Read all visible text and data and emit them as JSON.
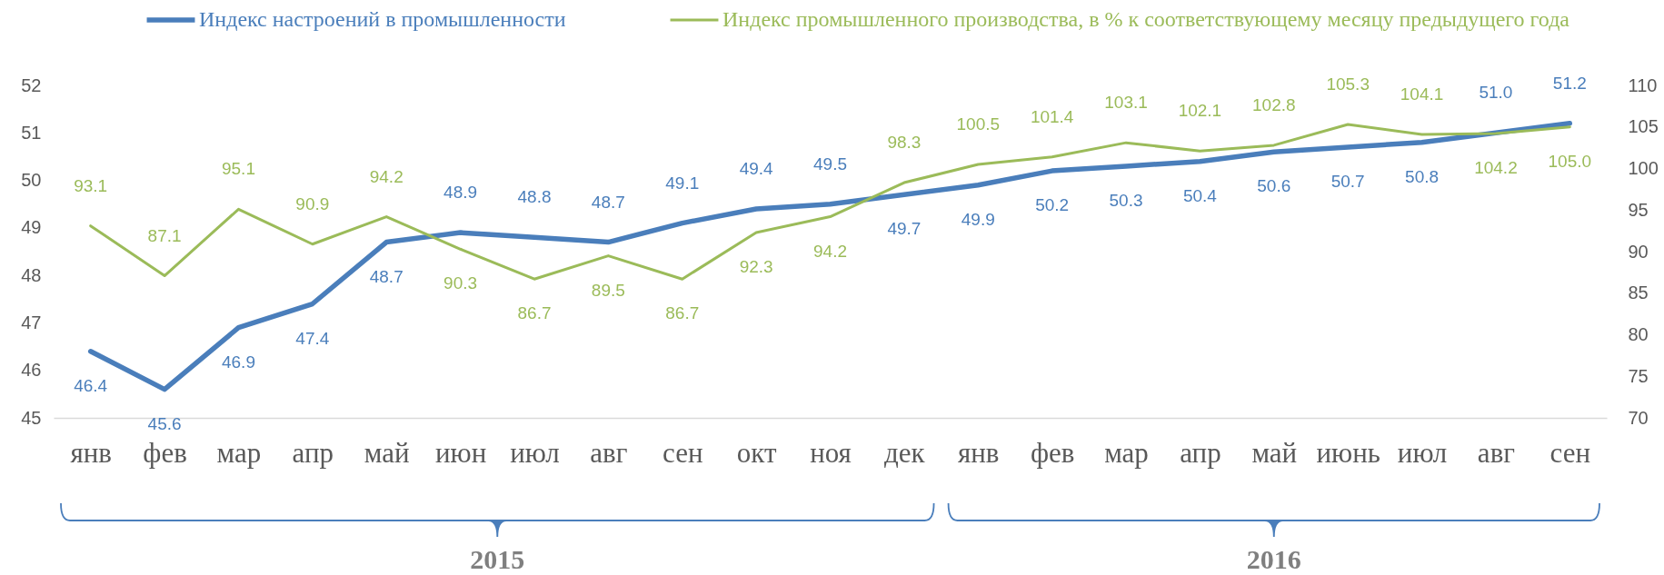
{
  "chart_data": {
    "type": "line",
    "categories": [
      "янв",
      "фев",
      "мар",
      "апр",
      "май",
      "июн",
      "июл",
      "авг",
      "сен",
      "окт",
      "ноя",
      "дек",
      "янв",
      "фев",
      "мар",
      "апр",
      "май",
      "июнь",
      "июл",
      "авг",
      "сен"
    ],
    "series": [
      {
        "name": "Индекс настроений в промышленности",
        "color": "#4a7ebb",
        "values": [
          46.4,
          45.6,
          46.9,
          47.4,
          48.7,
          48.9,
          48.8,
          48.7,
          49.1,
          49.4,
          49.5,
          49.7,
          49.9,
          50.2,
          50.3,
          50.4,
          50.6,
          50.7,
          50.8,
          51.0,
          51.2
        ],
        "value_labels": [
          "46.4",
          "45.6",
          "46.9",
          "47.4",
          "48.7",
          "48.9",
          "48.8",
          "48.7",
          "49.1",
          "49.4",
          "49.5",
          "49.7",
          "49.9",
          "50.2",
          "50.3",
          "50.4",
          "50.6",
          "50.7",
          "50.8",
          "51.0",
          "51.2"
        ]
      },
      {
        "name": "Индекс промышленного производства, в % к соответствующему месяцу предыдущего года",
        "color": "#9bbb59",
        "axis": "y2",
        "values": [
          93.1,
          87.1,
          95.1,
          90.9,
          94.2,
          90.3,
          86.7,
          89.5,
          86.7,
          92.3,
          94.2,
          98.3,
          100.5,
          101.4,
          103.1,
          102.1,
          102.8,
          105.3,
          104.1,
          104.2,
          105.0
        ],
        "value_labels": [
          "93.1",
          "87.1",
          "95.1",
          "90.9",
          "94.2",
          "90.3",
          "86.7",
          "89.5",
          "86.7",
          "92.3",
          "94.2",
          "98.3",
          "100.5",
          "101.4",
          "103.1",
          "102.1",
          "102.8",
          "105.3",
          "104.1",
          "104.2",
          "105.0"
        ]
      }
    ],
    "ylim": [
      45,
      52
    ],
    "yticks": [
      45,
      46,
      47,
      48,
      49,
      50,
      51,
      52
    ],
    "y2lim": [
      70,
      110
    ],
    "y2ticks": [
      70,
      75,
      80,
      85,
      90,
      95,
      100,
      105,
      110
    ],
    "legend": "top",
    "annotations": [
      "2015",
      "2016"
    ]
  }
}
